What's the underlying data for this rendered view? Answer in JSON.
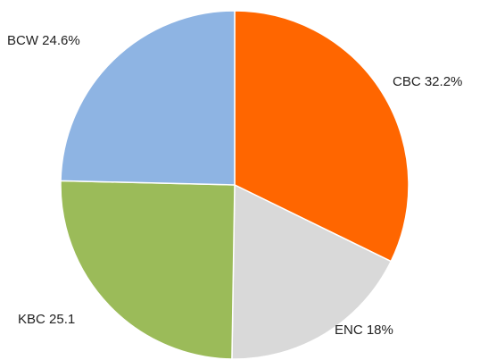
{
  "chart_data": {
    "type": "pie",
    "categories": [
      "CBC",
      "ENC",
      "KBC",
      "BCW"
    ],
    "values": [
      32.2,
      18,
      25.1,
      24.6
    ],
    "value_labels": [
      "32.2%",
      "18%",
      "25.1",
      "24.6%"
    ],
    "colors": [
      "#ff6600",
      "#d9d9d9",
      "#9bbb59",
      "#8eb4e3"
    ]
  }
}
